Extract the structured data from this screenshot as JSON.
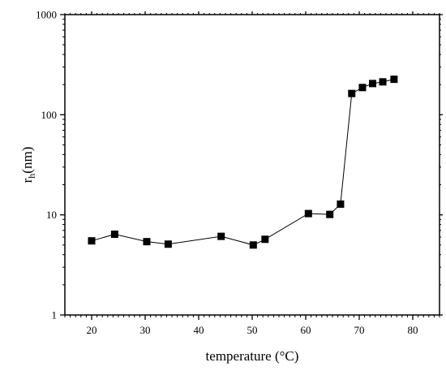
{
  "chart_data": {
    "type": "scatter",
    "connected": true,
    "marker": "filled-square",
    "title": "",
    "xlabel": "temperature (°C)",
    "ylabel_main": "r",
    "ylabel_sub": "h",
    "ylabel_rest": "(nm)",
    "xlim": [
      15,
      85
    ],
    "ylim": [
      1,
      1000
    ],
    "yscale": "log",
    "x_ticks": [
      20,
      30,
      40,
      50,
      60,
      70,
      80
    ],
    "x_tick_labels": [
      "20",
      "30",
      "40",
      "50",
      "60",
      "70",
      "80"
    ],
    "y_ticks": [
      1,
      10,
      100,
      1000
    ],
    "y_tick_labels": [
      "1",
      "10",
      "100",
      "1000"
    ],
    "grid": false,
    "series": [
      {
        "x": [
          20,
          24.3,
          30.3,
          34.3,
          44.2,
          50.2,
          52.4,
          60.5,
          64.5,
          66.5,
          68.6,
          70.6,
          72.5,
          74.4,
          76.5
        ],
        "y": [
          5.5,
          6.4,
          5.4,
          5.1,
          6.1,
          5.0,
          5.7,
          10.3,
          10.1,
          12.8,
          163,
          187,
          205,
          213,
          226
        ]
      }
    ]
  }
}
